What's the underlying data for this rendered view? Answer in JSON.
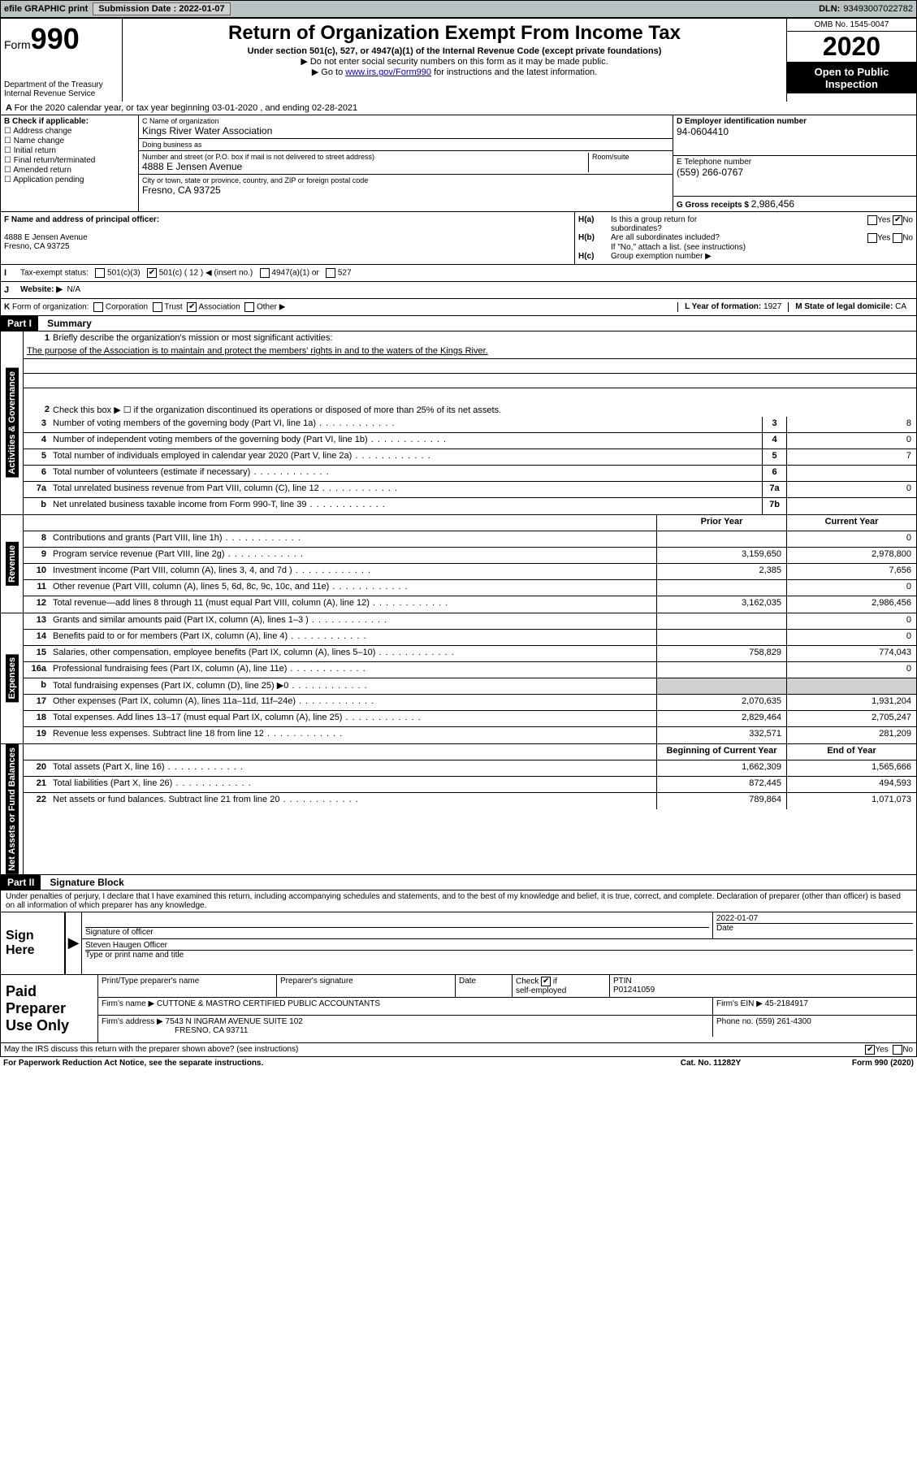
{
  "topbar": {
    "efile": "efile GRAPHIC print",
    "submission_label": "Submission Date :",
    "submission_date": "2022-01-07",
    "dln_label": "DLN:",
    "dln": "93493007022782"
  },
  "header": {
    "form_label": "Form",
    "form_no": "990",
    "dept": "Department of the Treasury",
    "irs": "Internal Revenue Service",
    "title": "Return of Organization Exempt From Income Tax",
    "sub1": "Under section 501(c), 527, or 4947(a)(1) of the Internal Revenue Code (except private foundations)",
    "sub2": "Do not enter social security numbers on this form as it may be made public.",
    "sub3_pre": "Go to ",
    "sub3_link": "www.irs.gov/Form990",
    "sub3_post": " for instructions and the latest information.",
    "omb": "OMB No. 1545-0047",
    "year": "2020",
    "inspect1": "Open to Public",
    "inspect2": "Inspection"
  },
  "line_a": "For the 2020 calendar year, or tax year beginning 03-01-2020    , and ending 02-28-2021",
  "box_b": {
    "label": "B Check if applicable:",
    "opts": [
      "Address change",
      "Name change",
      "Initial return",
      "Final return/terminated",
      "Amended return",
      "Application pending"
    ]
  },
  "box_c": {
    "name_label": "C Name of organization",
    "name": "Kings River Water Association",
    "dba_label": "Doing business as",
    "dba": "",
    "street_label": "Number and street (or P.O. box if mail is not delivered to street address)",
    "street": "4888 E Jensen Avenue",
    "room_label": "Room/suite",
    "city_label": "City or town, state or province, country, and ZIP or foreign postal code",
    "city": "Fresno, CA  93725"
  },
  "box_d": {
    "label": "D Employer identification number",
    "val": "94-0604410"
  },
  "box_e": {
    "label": "E Telephone number",
    "val": "(559) 266-0767"
  },
  "box_g": {
    "label": "G Gross receipts $",
    "val": "2,986,456"
  },
  "box_f": {
    "label": "F Name and address of principal officer:",
    "addr1": "4888 E Jensen Avenue",
    "addr2": "Fresno, CA  93725"
  },
  "box_h": {
    "a_label": "Is this a group return for",
    "a_label2": "subordinates?",
    "a_prefix": "H(a)",
    "a_no_checked": true,
    "b_prefix": "H(b)",
    "b_label": "Are all subordinates included?",
    "b_note": "If \"No,\" attach a list. (see instructions)",
    "c_prefix": "H(c)",
    "c_label": "Group exemption number ▶"
  },
  "line_i": {
    "prefix": "I",
    "label": "Tax-exempt status:",
    "opt1": "501(c)(3)",
    "opt2": "501(c) ( 12 ) ◀ (insert no.)",
    "opt2_checked": true,
    "opt3": "4947(a)(1) or",
    "opt4": "527"
  },
  "line_j": {
    "prefix": "J",
    "label": "Website: ▶",
    "val": "N/A"
  },
  "line_k": {
    "prefix": "K",
    "label": "Form of organization:",
    "opts": [
      "Corporation",
      "Trust",
      "Association",
      "Other ▶"
    ],
    "checked": "Association",
    "l_label": "L Year of formation:",
    "l_val": "1927",
    "m_label": "M State of legal domicile:",
    "m_val": "CA"
  },
  "part1": {
    "hdr": "Part I",
    "title": "Summary",
    "tab_gov": "Activities & Governance",
    "tab_rev": "Revenue",
    "tab_exp": "Expenses",
    "tab_net": "Net Assets or Fund Balances",
    "q1": "Briefly describe the organization's mission or most significant activities:",
    "mission": "The purpose of the Association is to maintain and protect the members' rights in and to the waters of the Kings River.",
    "q2": "Check this box ▶ ☐  if the organization discontinued its operations or disposed of more than 25% of its net assets.",
    "lines_gov": [
      {
        "n": "3",
        "d": "Number of voting members of the governing body (Part VI, line 1a)",
        "sm": "3",
        "v": "8"
      },
      {
        "n": "4",
        "d": "Number of independent voting members of the governing body (Part VI, line 1b)",
        "sm": "4",
        "v": "0"
      },
      {
        "n": "5",
        "d": "Total number of individuals employed in calendar year 2020 (Part V, line 2a)",
        "sm": "5",
        "v": "7"
      },
      {
        "n": "6",
        "d": "Total number of volunteers (estimate if necessary)",
        "sm": "6",
        "v": ""
      },
      {
        "n": "7a",
        "d": "Total unrelated business revenue from Part VIII, column (C), line 12",
        "sm": "7a",
        "v": "0"
      },
      {
        "n": "b",
        "d": "Net unrelated business taxable income from Form 990-T, line 39",
        "sm": "7b",
        "v": ""
      }
    ],
    "col_prior": "Prior Year",
    "col_curr": "Current Year",
    "lines_rev": [
      {
        "n": "8",
        "d": "Contributions and grants (Part VIII, line 1h)",
        "p": "",
        "c": "0"
      },
      {
        "n": "9",
        "d": "Program service revenue (Part VIII, line 2g)",
        "p": "3,159,650",
        "c": "2,978,800"
      },
      {
        "n": "10",
        "d": "Investment income (Part VIII, column (A), lines 3, 4, and 7d )",
        "p": "2,385",
        "c": "7,656"
      },
      {
        "n": "11",
        "d": "Other revenue (Part VIII, column (A), lines 5, 6d, 8c, 9c, 10c, and 11e)",
        "p": "",
        "c": "0"
      },
      {
        "n": "12",
        "d": "Total revenue—add lines 8 through 11 (must equal Part VIII, column (A), line 12)",
        "p": "3,162,035",
        "c": "2,986,456"
      }
    ],
    "lines_exp": [
      {
        "n": "13",
        "d": "Grants and similar amounts paid (Part IX, column (A), lines 1–3 )",
        "p": "",
        "c": "0"
      },
      {
        "n": "14",
        "d": "Benefits paid to or for members (Part IX, column (A), line 4)",
        "p": "",
        "c": "0"
      },
      {
        "n": "15",
        "d": "Salaries, other compensation, employee benefits (Part IX, column (A), lines 5–10)",
        "p": "758,829",
        "c": "774,043"
      },
      {
        "n": "16a",
        "d": "Professional fundraising fees (Part IX, column (A), line 11e)",
        "p": "",
        "c": "0"
      },
      {
        "n": "b",
        "d": "Total fundraising expenses (Part IX, column (D), line 25) ▶0",
        "p": "shade",
        "c": "shade"
      },
      {
        "n": "17",
        "d": "Other expenses (Part IX, column (A), lines 11a–11d, 11f–24e)",
        "p": "2,070,635",
        "c": "1,931,204"
      },
      {
        "n": "18",
        "d": "Total expenses. Add lines 13–17 (must equal Part IX, column (A), line 25)",
        "p": "2,829,464",
        "c": "2,705,247"
      },
      {
        "n": "19",
        "d": "Revenue less expenses. Subtract line 18 from line 12",
        "p": "332,571",
        "c": "281,209"
      }
    ],
    "col_beg": "Beginning of Current Year",
    "col_end": "End of Year",
    "lines_net": [
      {
        "n": "20",
        "d": "Total assets (Part X, line 16)",
        "p": "1,662,309",
        "c": "1,565,666"
      },
      {
        "n": "21",
        "d": "Total liabilities (Part X, line 26)",
        "p": "872,445",
        "c": "494,593"
      },
      {
        "n": "22",
        "d": "Net assets or fund balances. Subtract line 21 from line 20",
        "p": "789,864",
        "c": "1,071,073"
      }
    ]
  },
  "part2": {
    "hdr": "Part II",
    "title": "Signature Block",
    "perjury": "Under penalties of perjury, I declare that I have examined this return, including accompanying schedules and statements, and to the best of my knowledge and belief, it is true, correct, and complete. Declaration of preparer (other than officer) is based on all information of which preparer has any knowledge.",
    "sign_here": "Sign Here",
    "sig_officer": "Signature of officer",
    "sig_date": "2022-01-07",
    "date_label": "Date",
    "officer_name": "Steven Haugen  Officer",
    "type_label": "Type or print name and title",
    "paid_prep": "Paid Preparer Use Only",
    "print_name_label": "Print/Type preparer's name",
    "prep_sig_label": "Preparer's signature",
    "check_if": "Check",
    "self_emp": "self-employed",
    "check_checked": true,
    "ptin_label": "PTIN",
    "ptin": "P01241059",
    "firm_name_label": "Firm's name    ▶",
    "firm_name": "CUTTONE & MASTRO CERTIFIED PUBLIC ACCOUNTANTS",
    "firm_ein_label": "Firm's EIN ▶",
    "firm_ein": "45-2184917",
    "firm_addr_label": "Firm's address ▶",
    "firm_addr1": "7543 N INGRAM AVENUE SUITE 102",
    "firm_addr2": "FRESNO, CA  93711",
    "phone_label": "Phone no.",
    "phone": "(559) 261-4300",
    "discuss": "May the IRS discuss this return with the preparer shown above? (see instructions)",
    "discuss_yes_checked": true
  },
  "footer": {
    "pra": "For Paperwork Reduction Act Notice, see the separate instructions.",
    "cat": "Cat. No. 11282Y",
    "form": "Form 990 (2020)"
  },
  "ui": {
    "yes": "Yes",
    "no": "No",
    "if": "if"
  }
}
